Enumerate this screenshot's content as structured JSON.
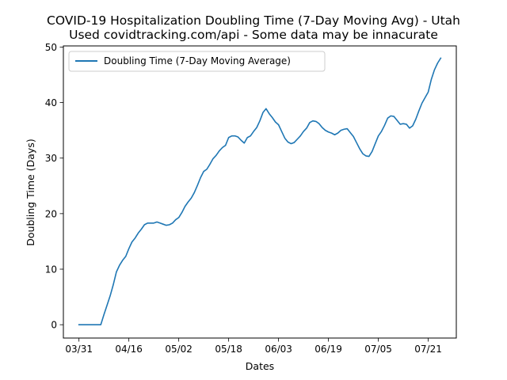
{
  "chart_data": {
    "type": "line",
    "title": "COVID-19 Hospitalization Doubling Time (7-Day Moving Avg) - Utah",
    "subtitle": "Used covidtracking.com/api - Some data may be innacurate",
    "xlabel": "Dates",
    "ylabel": "Doubling Time (Days)",
    "x_axis_type": "date",
    "x_ticks": [
      {
        "label": "03/31",
        "date": "2020-03-31"
      },
      {
        "label": "04/16",
        "date": "2020-04-16"
      },
      {
        "label": "05/02",
        "date": "2020-05-02"
      },
      {
        "label": "05/18",
        "date": "2020-05-18"
      },
      {
        "label": "06/03",
        "date": "2020-06-03"
      },
      {
        "label": "06/19",
        "date": "2020-06-19"
      },
      {
        "label": "07/05",
        "date": "2020-07-05"
      },
      {
        "label": "07/21",
        "date": "2020-07-21"
      }
    ],
    "xlim": [
      "2020-03-26",
      "2020-07-30"
    ],
    "y_ticks": [
      0,
      10,
      20,
      30,
      40,
      50
    ],
    "ylim": [
      -2.4,
      50.2
    ],
    "grid": false,
    "legend_position": "top-left",
    "series": [
      {
        "name": "Doubling Time (7-Day Moving Average)",
        "color": "#1f77b4",
        "points": [
          [
            "2020-03-31",
            0.0
          ],
          [
            "2020-04-01",
            0.0
          ],
          [
            "2020-04-02",
            0.0
          ],
          [
            "2020-04-03",
            0.0
          ],
          [
            "2020-04-04",
            0.0
          ],
          [
            "2020-04-05",
            0.0
          ],
          [
            "2020-04-06",
            0.0
          ],
          [
            "2020-04-07",
            0.0
          ],
          [
            "2020-04-08",
            1.8
          ],
          [
            "2020-04-09",
            3.5
          ],
          [
            "2020-04-10",
            5.2
          ],
          [
            "2020-04-11",
            7.2
          ],
          [
            "2020-04-12",
            9.5
          ],
          [
            "2020-04-13",
            10.7
          ],
          [
            "2020-04-14",
            11.6
          ],
          [
            "2020-04-15",
            12.3
          ],
          [
            "2020-04-16",
            13.7
          ],
          [
            "2020-04-17",
            14.9
          ],
          [
            "2020-04-18",
            15.6
          ],
          [
            "2020-04-19",
            16.5
          ],
          [
            "2020-04-20",
            17.2
          ],
          [
            "2020-04-21",
            18.0
          ],
          [
            "2020-04-22",
            18.3
          ],
          [
            "2020-04-23",
            18.3
          ],
          [
            "2020-04-24",
            18.3
          ],
          [
            "2020-04-25",
            18.5
          ],
          [
            "2020-04-26",
            18.3
          ],
          [
            "2020-04-27",
            18.1
          ],
          [
            "2020-04-28",
            17.9
          ],
          [
            "2020-04-29",
            18.0
          ],
          [
            "2020-04-30",
            18.3
          ],
          [
            "2020-05-01",
            18.9
          ],
          [
            "2020-05-02",
            19.3
          ],
          [
            "2020-05-03",
            20.2
          ],
          [
            "2020-05-04",
            21.3
          ],
          [
            "2020-05-05",
            22.1
          ],
          [
            "2020-05-06",
            22.8
          ],
          [
            "2020-05-07",
            23.8
          ],
          [
            "2020-05-08",
            25.1
          ],
          [
            "2020-05-09",
            26.5
          ],
          [
            "2020-05-10",
            27.6
          ],
          [
            "2020-05-11",
            28.0
          ],
          [
            "2020-05-12",
            28.9
          ],
          [
            "2020-05-13",
            29.9
          ],
          [
            "2020-05-14",
            30.5
          ],
          [
            "2020-05-15",
            31.3
          ],
          [
            "2020-05-16",
            31.9
          ],
          [
            "2020-05-17",
            32.3
          ],
          [
            "2020-05-18",
            33.7
          ],
          [
            "2020-05-19",
            34.0
          ],
          [
            "2020-05-20",
            34.0
          ],
          [
            "2020-05-21",
            33.8
          ],
          [
            "2020-05-22",
            33.2
          ],
          [
            "2020-05-23",
            32.7
          ],
          [
            "2020-05-24",
            33.7
          ],
          [
            "2020-05-25",
            34.0
          ],
          [
            "2020-05-26",
            34.8
          ],
          [
            "2020-05-27",
            35.5
          ],
          [
            "2020-05-28",
            36.7
          ],
          [
            "2020-05-29",
            38.2
          ],
          [
            "2020-05-30",
            38.9
          ],
          [
            "2020-05-31",
            38.0
          ],
          [
            "2020-06-01",
            37.3
          ],
          [
            "2020-06-02",
            36.5
          ],
          [
            "2020-06-03",
            36.0
          ],
          [
            "2020-06-04",
            34.8
          ],
          [
            "2020-06-05",
            33.6
          ],
          [
            "2020-06-06",
            32.9
          ],
          [
            "2020-06-07",
            32.6
          ],
          [
            "2020-06-08",
            32.8
          ],
          [
            "2020-06-09",
            33.4
          ],
          [
            "2020-06-10",
            34.0
          ],
          [
            "2020-06-11",
            34.8
          ],
          [
            "2020-06-12",
            35.4
          ],
          [
            "2020-06-13",
            36.4
          ],
          [
            "2020-06-14",
            36.7
          ],
          [
            "2020-06-15",
            36.6
          ],
          [
            "2020-06-16",
            36.2
          ],
          [
            "2020-06-17",
            35.5
          ],
          [
            "2020-06-18",
            35.0
          ],
          [
            "2020-06-19",
            34.7
          ],
          [
            "2020-06-20",
            34.5
          ],
          [
            "2020-06-21",
            34.2
          ],
          [
            "2020-06-22",
            34.5
          ],
          [
            "2020-06-23",
            35.0
          ],
          [
            "2020-06-24",
            35.2
          ],
          [
            "2020-06-25",
            35.3
          ],
          [
            "2020-06-26",
            34.6
          ],
          [
            "2020-06-27",
            33.9
          ],
          [
            "2020-06-28",
            32.8
          ],
          [
            "2020-06-29",
            31.7
          ],
          [
            "2020-06-30",
            30.8
          ],
          [
            "2020-07-01",
            30.4
          ],
          [
            "2020-07-02",
            30.3
          ],
          [
            "2020-07-03",
            31.2
          ],
          [
            "2020-07-04",
            32.6
          ],
          [
            "2020-07-05",
            34.0
          ],
          [
            "2020-07-06",
            34.8
          ],
          [
            "2020-07-07",
            35.9
          ],
          [
            "2020-07-08",
            37.2
          ],
          [
            "2020-07-09",
            37.6
          ],
          [
            "2020-07-10",
            37.5
          ],
          [
            "2020-07-11",
            36.8
          ],
          [
            "2020-07-12",
            36.1
          ],
          [
            "2020-07-13",
            36.2
          ],
          [
            "2020-07-14",
            36.1
          ],
          [
            "2020-07-15",
            35.4
          ],
          [
            "2020-07-16",
            35.8
          ],
          [
            "2020-07-17",
            37.0
          ],
          [
            "2020-07-18",
            38.5
          ],
          [
            "2020-07-19",
            39.9
          ],
          [
            "2020-07-20",
            40.9
          ],
          [
            "2020-07-21",
            41.9
          ],
          [
            "2020-07-22",
            44.2
          ],
          [
            "2020-07-23",
            45.9
          ],
          [
            "2020-07-24",
            47.1
          ],
          [
            "2020-07-25",
            48.0
          ]
        ]
      }
    ]
  }
}
